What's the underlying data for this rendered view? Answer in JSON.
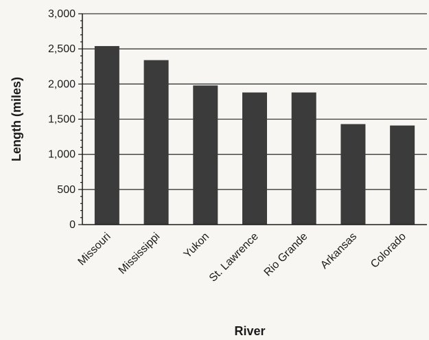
{
  "chart_data": {
    "type": "bar",
    "title": "",
    "xlabel": "River",
    "ylabel": "Length (miles)",
    "categories": [
      "Missouri",
      "Mississippi",
      "Yukon",
      "St. Lawrence",
      "Rio Grande",
      "Arkansas",
      "Colorado"
    ],
    "values": [
      2540,
      2340,
      1980,
      1880,
      1880,
      1430,
      1410
    ],
    "ylim": [
      0,
      3000
    ],
    "yticks": [
      0,
      500,
      1000,
      1500,
      2000,
      2500,
      3000
    ],
    "ytick_labels": [
      "0",
      "500",
      "1,000",
      "1,500",
      "2,000",
      "2,500",
      "3,000"
    ],
    "grid": true,
    "legend": "none",
    "bar_color": "#3b3b3b",
    "grid_color": "#3a3a3a"
  }
}
